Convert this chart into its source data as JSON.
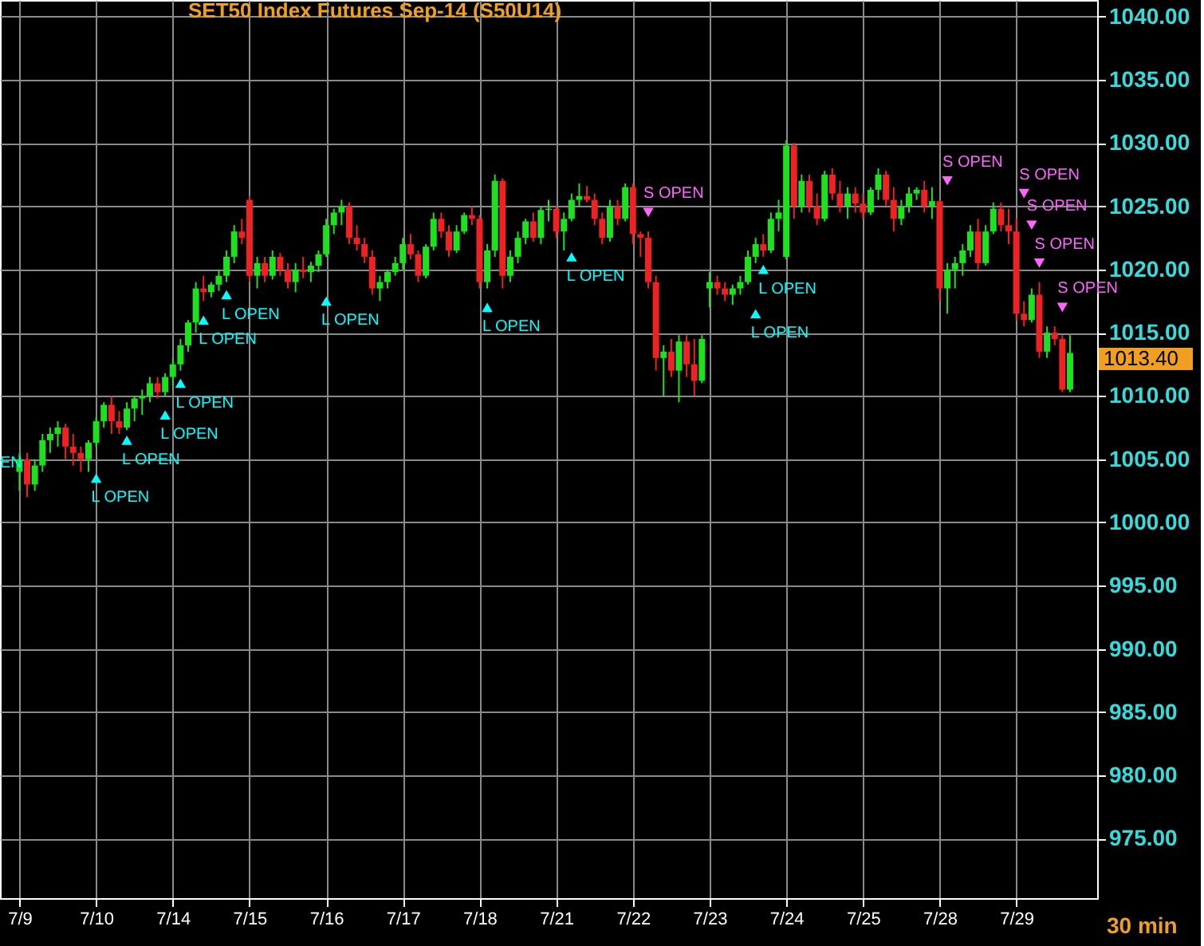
{
  "chart_data": {
    "type": "candlestick",
    "title": "SET50  Index Futures Sep-14  (S50U14)",
    "categories": [
      "7/9",
      null,
      null,
      null,
      null,
      null,
      null,
      null,
      null,
      null,
      "7/10",
      null,
      null,
      null,
      null,
      null,
      null,
      null,
      null,
      null,
      "7/14",
      null,
      null,
      null,
      null,
      null,
      null,
      null,
      null,
      null,
      "7/15",
      null,
      null,
      null,
      null,
      null,
      null,
      null,
      null,
      null,
      "7/16",
      null,
      null,
      null,
      null,
      null,
      null,
      null,
      null,
      null,
      "7/17",
      null,
      null,
      null,
      null,
      null,
      null,
      null,
      null,
      null,
      "7/18",
      null,
      null,
      null,
      null,
      null,
      null,
      null,
      null,
      null,
      "7/21",
      null,
      null,
      null,
      null,
      null,
      null,
      null,
      null,
      null,
      "7/22",
      null,
      null,
      null,
      null,
      null,
      null,
      null,
      null,
      null,
      "7/23",
      null,
      null,
      null,
      null,
      null,
      null,
      null,
      null,
      null,
      "7/24",
      null,
      null,
      null,
      null,
      null,
      null,
      null,
      null,
      null,
      "7/25",
      null,
      null,
      null,
      null,
      null,
      null,
      null,
      null,
      null,
      "7/28",
      null,
      null,
      null,
      null,
      null,
      null,
      null,
      null,
      null,
      "7/29",
      null,
      null,
      null,
      null,
      null,
      null,
      null
    ],
    "ohlc": [
      [
        1004,
        1005.5,
        1002.5,
        1005
      ],
      [
        1005,
        1005.5,
        1002,
        1003
      ],
      [
        1003,
        1005,
        1002.5,
        1004.5
      ],
      [
        1004.5,
        1007,
        1004,
        1006.5
      ],
      [
        1006.5,
        1007.5,
        1005.5,
        1007
      ],
      [
        1007,
        1008,
        1006,
        1007.5
      ],
      [
        1007.5,
        1007.8,
        1005,
        1006
      ],
      [
        1006,
        1007,
        1004.5,
        1005.5
      ],
      [
        1005.5,
        1006,
        1004,
        1005
      ],
      [
        1005,
        1006.5,
        1004,
        1006.3
      ],
      [
        1006.3,
        1008.3,
        1006,
        1008
      ],
      [
        1008,
        1009.5,
        1007.5,
        1009.3
      ],
      [
        1009.3,
        1010,
        1007,
        1008
      ],
      [
        1008,
        1008.8,
        1007,
        1007.5
      ],
      [
        1007.5,
        1009.5,
        1007.3,
        1009
      ],
      [
        1009,
        1010,
        1008,
        1009.8
      ],
      [
        1009.8,
        1010.5,
        1008.5,
        1010
      ],
      [
        1010,
        1011.5,
        1009.5,
        1011
      ],
      [
        1011,
        1011.5,
        1009.8,
        1010.3
      ],
      [
        1010.3,
        1011.8,
        1010,
        1011.5
      ],
      [
        1011.5,
        1013,
        1010.8,
        1012.5
      ],
      [
        1012.5,
        1014.5,
        1012,
        1014
      ],
      [
        1014,
        1016,
        1013.5,
        1015.8
      ],
      [
        1015.8,
        1019,
        1015,
        1018.5
      ],
      [
        1018.5,
        1019.5,
        1017.5,
        1018.2
      ],
      [
        1018.2,
        1019,
        1017.8,
        1018.8
      ],
      [
        1018.8,
        1020,
        1018.3,
        1019.5
      ],
      [
        1019.5,
        1021.5,
        1019,
        1021
      ],
      [
        1021,
        1023.5,
        1020.5,
        1023
      ],
      [
        1023,
        1024,
        1022,
        1022.5
      ],
      [
        1025.5,
        1025.8,
        1019,
        1019.5
      ],
      [
        1019.5,
        1021,
        1018.5,
        1020.5
      ],
      [
        1020.5,
        1021,
        1019,
        1019.5
      ],
      [
        1019.5,
        1021.5,
        1019.2,
        1021
      ],
      [
        1021,
        1021.3,
        1019.5,
        1020
      ],
      [
        1020,
        1020.5,
        1018.5,
        1019
      ],
      [
        1019,
        1020.5,
        1018.2,
        1020
      ],
      [
        1020,
        1021,
        1019.3,
        1019.8
      ],
      [
        1019.8,
        1020.6,
        1019,
        1020.3
      ],
      [
        1020.3,
        1021.5,
        1019.8,
        1021.2
      ],
      [
        1021.2,
        1024,
        1021,
        1023.5
      ],
      [
        1023.5,
        1024.8,
        1022.8,
        1024.5
      ],
      [
        1024.5,
        1025.5,
        1023.5,
        1025
      ],
      [
        1025,
        1025.3,
        1022,
        1022.5
      ],
      [
        1022.5,
        1023.5,
        1021.5,
        1022
      ],
      [
        1022,
        1022.5,
        1020.5,
        1021
      ],
      [
        1021,
        1021.5,
        1018,
        1018.5
      ],
      [
        1018.5,
        1019.5,
        1017.5,
        1019
      ],
      [
        1019,
        1020,
        1018.5,
        1019.8
      ],
      [
        1019.8,
        1021,
        1019.5,
        1020.5
      ],
      [
        1020.5,
        1022.5,
        1020,
        1022
      ],
      [
        1022,
        1022.8,
        1020.8,
        1021.2
      ],
      [
        1021.2,
        1021.5,
        1019,
        1019.5
      ],
      [
        1019.5,
        1022,
        1019.3,
        1021.8
      ],
      [
        1021.8,
        1024.5,
        1021.5,
        1024
      ],
      [
        1024,
        1024.5,
        1022.5,
        1023
      ],
      [
        1023,
        1023.5,
        1021,
        1021.5
      ],
      [
        1021.5,
        1023.5,
        1021.3,
        1023
      ],
      [
        1023,
        1024.5,
        1022.8,
        1024.3
      ],
      [
        1024.3,
        1025,
        1023.5,
        1024
      ],
      [
        1024,
        1024.3,
        1018.5,
        1019
      ],
      [
        1019,
        1022,
        1018.5,
        1021.5
      ],
      [
        1021.5,
        1027.5,
        1021,
        1027
      ],
      [
        1027,
        1027.2,
        1018.5,
        1019.5
      ],
      [
        1019.5,
        1021.5,
        1019,
        1021
      ],
      [
        1021,
        1023,
        1020.5,
        1022.5
      ],
      [
        1022.5,
        1024,
        1022,
        1023.8
      ],
      [
        1023.8,
        1024.5,
        1022.2,
        1022.5
      ],
      [
        1022.5,
        1025,
        1022,
        1024.7
      ],
      [
        1024.7,
        1025.5,
        1023.8,
        1024.8
      ],
      [
        1024.8,
        1025,
        1022.5,
        1023
      ],
      [
        1023,
        1024.5,
        1021.5,
        1024
      ],
      [
        1024,
        1026,
        1023.8,
        1025.5
      ],
      [
        1025.5,
        1026.8,
        1025,
        1025.8
      ],
      [
        1025.8,
        1026.6,
        1025.3,
        1025.5
      ],
      [
        1025.5,
        1026,
        1023.5,
        1024
      ],
      [
        1024,
        1024.5,
        1022,
        1022.5
      ],
      [
        1022.5,
        1025.5,
        1022.2,
        1025
      ],
      [
        1025,
        1025.5,
        1023.5,
        1024
      ],
      [
        1024,
        1026.8,
        1023.8,
        1026.5
      ],
      [
        1026.5,
        1026.8,
        1022,
        1022.8
      ],
      [
        1022.8,
        1023,
        1021,
        1022.5
      ],
      [
        1022.5,
        1023,
        1018.5,
        1019
      ],
      [
        1019,
        1019.5,
        1012,
        1013
      ],
      [
        1013,
        1014,
        1010,
        1013.5
      ],
      [
        1013.5,
        1014.5,
        1011.5,
        1012
      ],
      [
        1012,
        1014.8,
        1009.5,
        1014.3
      ],
      [
        1014.3,
        1014.8,
        1011.5,
        1012.5
      ],
      [
        1012.5,
        1014.5,
        1010,
        1011.2
      ],
      [
        1011.2,
        1014.8,
        1011,
        1014.5
      ],
      [
        1018.5,
        1019.8,
        1017,
        1019
      ],
      [
        1019,
        1019.5,
        1018,
        1018.5
      ],
      [
        1018.5,
        1019,
        1017.5,
        1018
      ],
      [
        1018,
        1018.8,
        1017.2,
        1018.5
      ],
      [
        1018.5,
        1019.5,
        1018,
        1019
      ],
      [
        1019,
        1021.5,
        1018.8,
        1021
      ],
      [
        1021,
        1022.5,
        1020.5,
        1022
      ],
      [
        1022,
        1022.8,
        1021,
        1021.5
      ],
      [
        1021.5,
        1024.5,
        1021.3,
        1024
      ],
      [
        1024,
        1025.5,
        1023,
        1024.5
      ],
      [
        1021,
        1030.2,
        1020.8,
        1029.8
      ],
      [
        1029.8,
        1030,
        1024,
        1025
      ],
      [
        1025,
        1027.5,
        1024.5,
        1027
      ],
      [
        1027,
        1027.5,
        1024.5,
        1025
      ],
      [
        1025,
        1026,
        1023.5,
        1024
      ],
      [
        1024,
        1027.8,
        1023.8,
        1027.5
      ],
      [
        1027.5,
        1028,
        1025.5,
        1026
      ],
      [
        1026,
        1027,
        1024.5,
        1025
      ],
      [
        1025,
        1026.5,
        1024,
        1026
      ],
      [
        1026,
        1026.5,
        1024.5,
        1025.2
      ],
      [
        1025.2,
        1026,
        1024,
        1024.5
      ],
      [
        1024.5,
        1026.5,
        1024.3,
        1026.3
      ],
      [
        1026.3,
        1028,
        1025.5,
        1027.5
      ],
      [
        1027.5,
        1027.8,
        1025,
        1025.5
      ],
      [
        1025.5,
        1026.5,
        1023,
        1024
      ],
      [
        1024,
        1025.5,
        1023.5,
        1025
      ],
      [
        1025,
        1026.5,
        1024.5,
        1026
      ],
      [
        1026,
        1026.5,
        1025.5,
        1026.3
      ],
      [
        1026.3,
        1027,
        1024.5,
        1025
      ],
      [
        1025,
        1026.5,
        1024,
        1025.4
      ],
      [
        1025.4,
        1025.5,
        1017.5,
        1018.5
      ],
      [
        1018.5,
        1020.5,
        1016.5,
        1020
      ],
      [
        1020,
        1021,
        1018.5,
        1020.5
      ],
      [
        1020.5,
        1022,
        1019.5,
        1021.5
      ],
      [
        1021.5,
        1023.5,
        1021,
        1023
      ],
      [
        1023,
        1024,
        1020,
        1020.5
      ],
      [
        1020.5,
        1023.5,
        1020.3,
        1023
      ],
      [
        1023,
        1025.3,
        1022.8,
        1024.8
      ],
      [
        1024.8,
        1025.3,
        1023,
        1023.5
      ],
      [
        1023.5,
        1024.8,
        1022,
        1023
      ],
      [
        1023,
        1024,
        1016,
        1016.5
      ],
      [
        1016.5,
        1017.5,
        1015.5,
        1016
      ],
      [
        1016,
        1018.5,
        1015.8,
        1018
      ],
      [
        1018,
        1019,
        1013,
        1013.5
      ],
      [
        1013.5,
        1015.5,
        1013,
        1015
      ],
      [
        1015,
        1015.5,
        1014,
        1014.5
      ],
      [
        1014.5,
        1014.8,
        1010.3,
        1010.5
      ],
      [
        1010.5,
        1014.8,
        1010.3,
        1013.4
      ]
    ],
    "series": [
      {
        "name": "L OPEN",
        "type": "scatter",
        "marker": "triangle",
        "color": "#00ffff",
        "values": [
          null,
          null,
          null,
          null,
          null,
          null,
          null,
          null,
          null,
          null,
          1003.5,
          null,
          null,
          null,
          1006.5,
          null,
          null,
          null,
          null,
          1008.5,
          null,
          1011,
          null,
          null,
          1016,
          null,
          null,
          1018,
          null,
          null,
          null,
          null,
          null,
          null,
          null,
          null,
          null,
          null,
          null,
          null,
          1017.5,
          null,
          null,
          null,
          null,
          null,
          null,
          null,
          null,
          null,
          null,
          null,
          null,
          null,
          null,
          null,
          null,
          null,
          null,
          null,
          null,
          1017,
          null,
          null,
          null,
          null,
          null,
          null,
          null,
          null,
          null,
          null,
          1021,
          null,
          null,
          null,
          null,
          null,
          null,
          null,
          null,
          null,
          null,
          null,
          null,
          null,
          null,
          null,
          null,
          null,
          null,
          null,
          null,
          null,
          null,
          null,
          1016.5,
          1020,
          null,
          null,
          null,
          null,
          null,
          null,
          null,
          null,
          null,
          null,
          null,
          null,
          null,
          null,
          null,
          null,
          null,
          null,
          null,
          null,
          null,
          null,
          null,
          null,
          null,
          null,
          null,
          null,
          null,
          null,
          null,
          null,
          null,
          null,
          null,
          null,
          null,
          null,
          null,
          null
        ]
      },
      {
        "name": "S OPEN",
        "type": "scatter",
        "marker": "triangle",
        "color": "#ff66ff",
        "values": [
          null,
          null,
          null,
          null,
          null,
          null,
          null,
          null,
          null,
          null,
          null,
          null,
          null,
          null,
          null,
          null,
          null,
          null,
          null,
          null,
          null,
          null,
          null,
          null,
          null,
          null,
          null,
          null,
          null,
          null,
          null,
          null,
          null,
          null,
          null,
          null,
          null,
          null,
          null,
          null,
          null,
          null,
          null,
          null,
          null,
          null,
          null,
          null,
          null,
          null,
          null,
          null,
          null,
          null,
          null,
          null,
          null,
          null,
          null,
          null,
          null,
          null,
          null,
          null,
          null,
          null,
          null,
          null,
          null,
          null,
          null,
          null,
          null,
          null,
          null,
          null,
          null,
          null,
          null,
          null,
          null,
          null,
          1024.5,
          null,
          null,
          null,
          null,
          null,
          null,
          null,
          null,
          null,
          null,
          null,
          null,
          null,
          null,
          null,
          null,
          null,
          null,
          null,
          null,
          null,
          null,
          null,
          null,
          null,
          null,
          null,
          null,
          null,
          null,
          null,
          null,
          null,
          null,
          null,
          null,
          null,
          null,
          1027,
          null,
          null,
          null,
          null,
          null,
          null,
          null,
          null,
          null,
          1026,
          1023.5,
          1020.5,
          null,
          null,
          1017,
          null
        ]
      }
    ],
    "annotations": [
      "EN",
      "1013.40",
      "30 min"
    ],
    "ylim": [
      970.3,
      1041.3
    ],
    "yticks": [
      {
        "value": 975,
        "label": "975.00"
      },
      {
        "value": 980,
        "label": "980.00"
      },
      {
        "value": 985,
        "label": "985.00"
      },
      {
        "value": 990,
        "label": "990.00"
      },
      {
        "value": 995,
        "label": "995.00"
      },
      {
        "value": 1000,
        "label": "1000.00"
      },
      {
        "value": 1005,
        "label": "1005.00"
      },
      {
        "value": 1010,
        "label": "1010.00"
      },
      {
        "value": 1015,
        "label": "1015.00"
      },
      {
        "value": 1020,
        "label": "1020.00"
      },
      {
        "value": 1025,
        "label": "1025.00"
      },
      {
        "value": 1030,
        "label": "1030.00"
      },
      {
        "value": 1035,
        "label": "1035.00"
      },
      {
        "value": 1040,
        "label": "1040.00"
      }
    ],
    "grid": true
  }
}
